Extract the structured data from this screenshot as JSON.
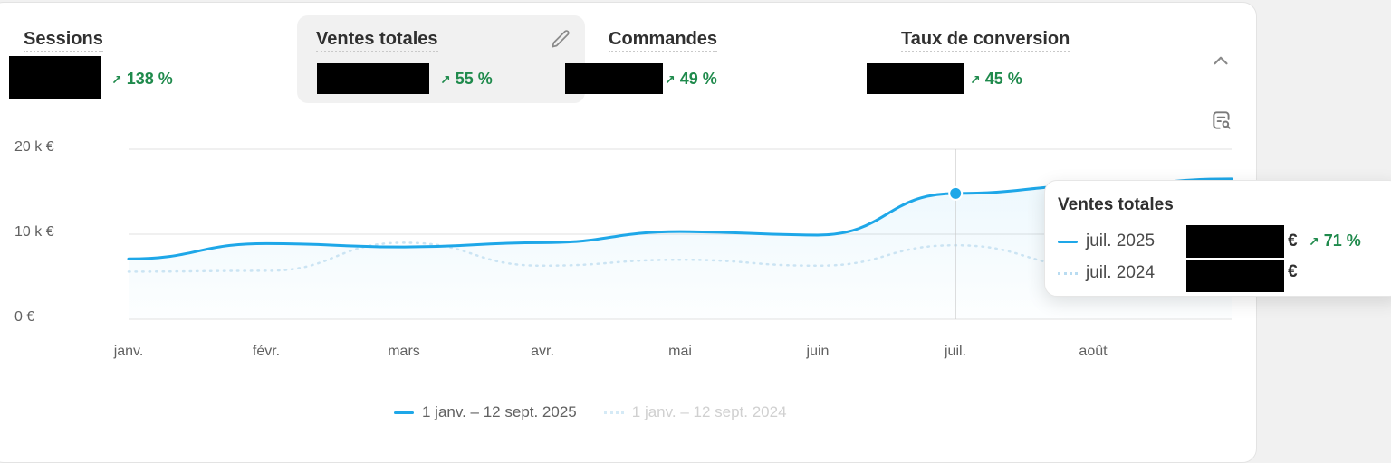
{
  "metrics": [
    {
      "title": "Sessions",
      "delta": "138 %",
      "value_redacted": true,
      "active": false
    },
    {
      "title": "Ventes totales",
      "delta": "55 %",
      "value_redacted": true,
      "active": true
    },
    {
      "title": "Commandes",
      "delta": "49 %",
      "value_redacted": true,
      "active": false
    },
    {
      "title": "Taux de conversion",
      "delta": "45 %",
      "value_redacted": true,
      "active": false
    }
  ],
  "icons": {
    "delta_arrow": "arrow-up-right-icon",
    "edit": "pencil-icon",
    "collapse": "chevron-up-icon",
    "explore": "report-search-icon"
  },
  "colors": {
    "primary_line": "#1ea7e8",
    "comparison_line": "#b9dcf1",
    "positive": "#1f8a4c",
    "active_tile_bg": "#f1f1f1",
    "page_bg": "#f1f1f1"
  },
  "chart": {
    "y_ticks": [
      "20 k €",
      "10 k €",
      "0 €"
    ],
    "x_ticks": [
      "janv.",
      "févr.",
      "mars",
      "avr.",
      "mai",
      "juin",
      "juil.",
      "août"
    ],
    "legend": [
      "1 janv. – 12 sept. 2025",
      "1 janv. – 12 sept. 2024"
    ]
  },
  "tooltip": {
    "title": "Ventes totales",
    "rows": [
      {
        "label": "juil. 2025",
        "currency": "€",
        "delta": "71 %",
        "value_redacted": true
      },
      {
        "label": "juil. 2024",
        "currency": "€",
        "value_redacted": true
      }
    ]
  },
  "chart_data": {
    "type": "line",
    "title": "Ventes totales",
    "xlabel": "",
    "ylabel": "",
    "ylim": [
      0,
      20000
    ],
    "y_tick_labels": [
      "0 €",
      "10 k €",
      "20 k €"
    ],
    "categories": [
      "janv.",
      "févr.",
      "mars",
      "avr.",
      "mai",
      "juin",
      "juil.",
      "août"
    ],
    "series": [
      {
        "name": "1 janv. – 12 sept. 2025",
        "style": "solid",
        "values": [
          7100,
          8900,
          8500,
          9000,
          10300,
          9900,
          14800,
          15700
        ]
      },
      {
        "name": "1 janv. – 12 sept. 2024",
        "style": "dotted",
        "values": [
          5600,
          5700,
          9000,
          6300,
          7000,
          6300,
          8700,
          6200
        ]
      }
    ],
    "highlighted_point": {
      "category": "juil.",
      "series": "1 janv. – 12 sept. 2025"
    },
    "grid": true,
    "legend_position": "bottom"
  }
}
